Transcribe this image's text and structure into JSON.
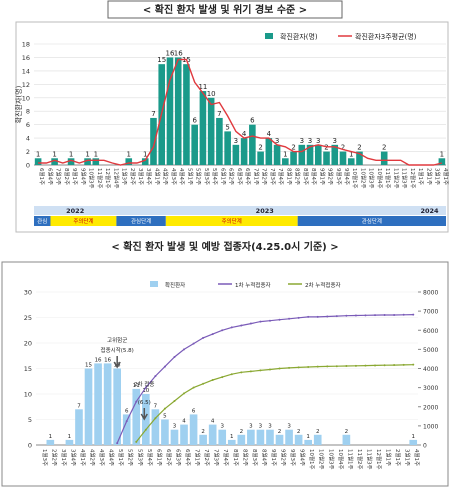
{
  "chart_data": [
    {
      "type": "combo",
      "title": "< 확진 환자 발생 및 위기 경보 수준 >",
      "y_label": "확진환자(명)",
      "categories": [
        "6월1주",
        "6월4주",
        "7월3주",
        "8월2주",
        "9월1주",
        "9월4주",
        "10월3주",
        "11월2주",
        "12월1주",
        "12월4주",
        "1월3주",
        "2월2주",
        "3월1주",
        "3월4주",
        "4월1주",
        "4월2주",
        "4월3주",
        "4월4주",
        "5월1주",
        "5월2주",
        "5월3주",
        "5월4주",
        "6월1주",
        "6월2주",
        "6월3주",
        "6월4주",
        "7월1주",
        "7월2주",
        "7월3주",
        "7월4주",
        "8월1주",
        "8월2주",
        "8월3주",
        "8월4주",
        "9월1주",
        "9월2주",
        "9월3주",
        "9월4주",
        "10월1주",
        "10월2주",
        "10월3주",
        "10월4주",
        "11월1주",
        "11월2주",
        "11월3주",
        "12월1주",
        "1월1주",
        "2월1주",
        "3월1주",
        "4월1주"
      ],
      "series": [
        {
          "name": "확진환자(명)",
          "kind": "bar",
          "color": "#1a9a8a",
          "values": [
            1,
            0,
            1,
            0,
            1,
            0,
            1,
            1,
            0,
            0,
            0,
            1,
            0,
            1,
            7,
            15,
            16,
            16,
            15,
            6,
            11,
            10,
            7,
            5,
            3,
            4,
            6,
            2,
            4,
            3,
            1,
            2,
            3,
            3,
            3,
            2,
            3,
            2,
            1,
            2,
            0,
            0,
            2,
            0,
            0,
            0,
            0,
            0,
            0,
            1
          ]
        },
        {
          "name": "확진환자3주평균(명)",
          "kind": "line",
          "color": "#e0393e",
          "values": [
            0.3,
            0.3,
            0.7,
            0.3,
            0.7,
            0.3,
            0.7,
            0.7,
            0.7,
            0.3,
            0,
            0.3,
            0.3,
            0.7,
            2.7,
            7.7,
            12.7,
            15.7,
            15.7,
            12.3,
            10.7,
            9,
            9.3,
            7.3,
            5,
            4,
            4.3,
            4,
            4,
            3,
            2.7,
            2,
            2,
            2.7,
            3,
            2.7,
            2.7,
            2.3,
            2,
            1.7,
            1,
            0.7,
            0.7,
            0.7,
            0.7,
            0,
            0,
            0,
            0,
            0.3
          ]
        }
      ],
      "ylim": [
        0,
        18
      ],
      "yticks": [
        0,
        2,
        4,
        6,
        8,
        10,
        12,
        14,
        16,
        18
      ],
      "grid": true,
      "years": [
        "2022",
        "2023",
        "2024"
      ],
      "alert_levels": [
        "관심",
        "주의단계",
        "관심단계",
        "주의단계",
        "관심단계"
      ]
    },
    {
      "type": "combo",
      "title": "< 확진 환자 발생 및 예방 접종자(4.25.0시 기준) >",
      "categories": [
        "1월3주",
        "2월2주",
        "3월1주",
        "3월4주",
        "4월1주",
        "4월2주",
        "4월3주",
        "4월4주",
        "5월1주",
        "5월2주",
        "5월3주",
        "5월4주",
        "6월1주",
        "6월2주",
        "6월3주",
        "6월4주",
        "7월1주",
        "7월2주",
        "7월3주",
        "7월4주",
        "8월1주",
        "8월2주",
        "8월3주",
        "8월4주",
        "9월1주",
        "9월2주",
        "9월3주",
        "9월4주",
        "10월1주",
        "10월2주",
        "10월3주",
        "10월4주",
        "11월1주",
        "11월2주",
        "11월3주",
        "12월1주",
        "1월1주",
        "2월1주",
        "3월1주",
        "4월1주"
      ],
      "series": [
        {
          "name": "확진환자",
          "kind": "bar",
          "color": "#9fd0f0",
          "values": [
            0,
            1,
            0,
            1,
            7,
            15,
            16,
            16,
            15,
            6,
            11,
            10,
            7,
            5,
            3,
            4,
            6,
            2,
            4,
            3,
            1,
            2,
            3,
            3,
            3,
            2,
            3,
            2,
            1,
            2,
            0,
            0,
            2,
            0,
            0,
            0,
            0,
            0,
            0,
            1
          ]
        },
        {
          "name": "1차 누적접종자",
          "kind": "line",
          "axis": "y2",
          "color": "#7a5bb8",
          "values": [
            null,
            null,
            null,
            null,
            null,
            null,
            null,
            null,
            100,
            1250,
            2270,
            3000,
            3600,
            4100,
            4600,
            5000,
            5300,
            5600,
            5800,
            6000,
            6150,
            6250,
            6350,
            6450,
            6500,
            6550,
            6600,
            6650,
            6700,
            6700,
            6720,
            6740,
            6760,
            6770,
            6780,
            6790,
            6800,
            6800,
            6810,
            6820
          ]
        },
        {
          "name": "2차 누적접종자",
          "kind": "line",
          "axis": "y2",
          "color": "#8aa832",
          "values": [
            null,
            null,
            null,
            null,
            null,
            null,
            null,
            null,
            null,
            null,
            164,
            800,
            1400,
            1900,
            2300,
            2700,
            3000,
            3200,
            3400,
            3550,
            3700,
            3800,
            3850,
            3900,
            3950,
            4000,
            4030,
            4060,
            4080,
            4100,
            4110,
            4120,
            4130,
            4140,
            4150,
            4160,
            4170,
            4180,
            4190,
            4200
          ]
        }
      ],
      "ylim": [
        0,
        30
      ],
      "yticks": [
        0,
        5,
        10,
        15,
        20,
        25,
        30
      ],
      "y2lim": [
        0,
        8000
      ],
      "y2ticks": [
        0,
        1000,
        2000,
        3000,
        4000,
        5000,
        6000,
        7000,
        8000
      ],
      "grid": true,
      "annotations": [
        "고위험군",
        "접종시작(5.8)",
        "2차 접종",
        "(6.5)"
      ]
    }
  ]
}
